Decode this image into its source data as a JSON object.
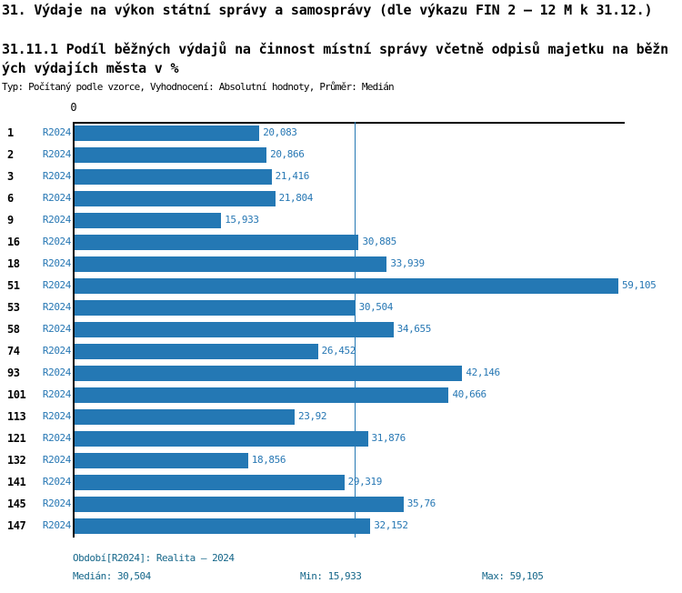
{
  "title": "31. Výdaje na výkon státní správy a samosprávy (dle výkazu FIN 2 – 12 M k 31.12.)",
  "subtitle": "31.11.1 Podíl běžných výdajů na činnost místní správy včetně odpisů majetku na běžných výdajích města v %",
  "meta": "Typ: Počítaný podle vzorce, Vyhodnocení: Absolutní hodnoty, Průměr: Medián",
  "colors": {
    "bar": "#2478B4",
    "bar_label_text": "#2878B4",
    "median_line": "#2478B4",
    "axis": "#000000",
    "footer_text": "#16678A",
    "heading_text": "#000000"
  },
  "chart_data": {
    "type": "bar",
    "orientation": "horizontal",
    "title": "31.11.1 Podíl běžných výdajů na činnost místní správy včetně odpisů majetku na běžných výdajích města v %",
    "zero_tick": "0",
    "xlim": [
      0,
      59.105
    ],
    "grid": false,
    "categories": [
      "1",
      "2",
      "3",
      "6",
      "9",
      "16",
      "18",
      "51",
      "53",
      "58",
      "74",
      "93",
      "101",
      "113",
      "121",
      "132",
      "141",
      "145",
      "147"
    ],
    "series": [
      {
        "name": "R2024",
        "values": [
          20.083,
          20.866,
          21.416,
          21.804,
          15.933,
          30.885,
          33.939,
          59.105,
          30.504,
          34.655,
          26.452,
          42.146,
          40.666,
          23.92,
          31.876,
          18.856,
          29.319,
          35.76,
          32.152
        ],
        "value_labels": [
          "20,083",
          "20,866",
          "21,416",
          "21,804",
          "15,933",
          "30,885",
          "33,939",
          "59,105",
          "30,504",
          "34,655",
          "26,452",
          "42,146",
          "40,666",
          "23,92",
          "31,876",
          "18,856",
          "29,319",
          "35,76",
          "32,152"
        ]
      }
    ],
    "median": 30.504,
    "min": 15.933,
    "max": 59.105
  },
  "footer": {
    "period": "Období[R2024]: Realita – 2024",
    "median": "Medián: 30,504",
    "min": "Min: 15,933",
    "max": "Max: 59,105"
  }
}
